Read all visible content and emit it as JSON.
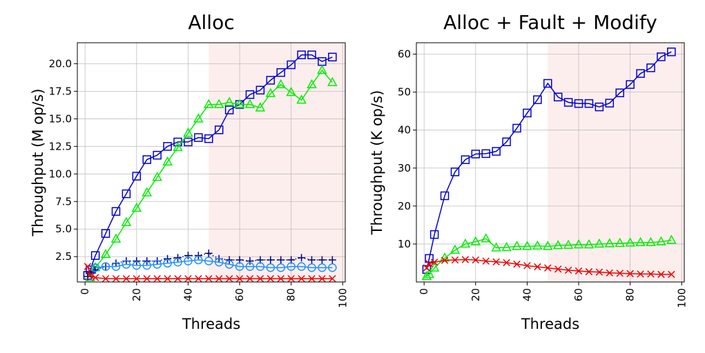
{
  "chart_data": [
    {
      "type": "line",
      "title": "Alloc",
      "xlabel": "Threads",
      "ylabel": "Throughput (M op/s)",
      "xlim": [
        -3,
        101
      ],
      "ylim": [
        0.2,
        21.9
      ],
      "xticks": [
        0,
        20,
        40,
        60,
        80,
        100
      ],
      "yticks": [
        2.5,
        5.0,
        7.5,
        10.0,
        12.5,
        15.0,
        17.5,
        20.0
      ],
      "ytick_labels": [
        "2.5",
        "5.0",
        "7.5",
        "10.0",
        "12.5",
        "15.0",
        "17.5",
        "20.0"
      ],
      "grid": true,
      "shaded_region": {
        "x0": 48,
        "x1": 101,
        "color": "#fdeeee"
      },
      "series": [
        {
          "color": "#0000cc",
          "marker": "square",
          "linestyle": "solid",
          "x": [
            1,
            2,
            4,
            8,
            12,
            16,
            20,
            24,
            28,
            32,
            36,
            40,
            44,
            48,
            52,
            56,
            60,
            64,
            68,
            72,
            76,
            80,
            84,
            88,
            92,
            96
          ],
          "y": [
            0.8,
            1.3,
            2.6,
            4.6,
            6.6,
            8.2,
            9.8,
            11.3,
            11.7,
            12.5,
            12.9,
            12.9,
            13.3,
            13.2,
            14.0,
            15.8,
            16.3,
            17.2,
            17.6,
            18.5,
            19.2,
            19.9,
            20.8,
            20.8,
            20.2,
            20.6
          ]
        },
        {
          "color": "#00ee00",
          "marker": "triangle",
          "linestyle": "solid",
          "x": [
            2,
            4,
            8,
            12,
            16,
            20,
            24,
            28,
            32,
            36,
            40,
            44,
            48,
            52,
            56,
            60,
            64,
            68,
            72,
            76,
            80,
            84,
            88,
            92,
            96
          ],
          "y": [
            0.6,
            1.5,
            2.7,
            4.1,
            5.6,
            6.9,
            8.3,
            9.7,
            11.1,
            12.4,
            13.7,
            15.0,
            16.3,
            16.3,
            16.5,
            16.3,
            16.3,
            16.0,
            17.3,
            18.1,
            17.4,
            16.7,
            18.1,
            19.4,
            18.3
          ]
        },
        {
          "color": "#000080",
          "marker": "plus",
          "linestyle": "dotted",
          "x": [
            1,
            2,
            4,
            8,
            12,
            16,
            20,
            24,
            28,
            32,
            36,
            40,
            44,
            48,
            52,
            56,
            60,
            64,
            68,
            72,
            76,
            80,
            84,
            88,
            92,
            96
          ],
          "y": [
            0.7,
            1.1,
            1.3,
            1.6,
            1.9,
            2.1,
            2.1,
            2.1,
            2.1,
            2.3,
            2.4,
            2.6,
            2.6,
            2.8,
            2.3,
            2.2,
            2.2,
            2.1,
            2.2,
            2.2,
            2.2,
            2.2,
            2.4,
            2.2,
            2.2,
            2.2
          ]
        },
        {
          "color": "#1e90ff",
          "marker": "circle",
          "linestyle": "solid",
          "x": [
            4,
            8,
            12,
            16,
            20,
            24,
            28,
            32,
            36,
            40,
            44,
            48,
            52,
            56,
            60,
            64,
            68,
            72,
            76,
            80,
            84,
            88,
            92,
            96
          ],
          "y": [
            1.5,
            1.6,
            1.6,
            1.8,
            1.7,
            1.7,
            1.8,
            1.9,
            2.0,
            2.1,
            2.2,
            2.1,
            2.0,
            1.8,
            1.6,
            1.6,
            1.6,
            1.5,
            1.5,
            1.6,
            1.6,
            1.5,
            1.5,
            1.5
          ]
        },
        {
          "color": "#ee0000",
          "marker": "x",
          "linestyle": "solid",
          "x": [
            1,
            2,
            4,
            8,
            12,
            16,
            20,
            24,
            28,
            32,
            36,
            40,
            44,
            48,
            52,
            56,
            60,
            64,
            68,
            72,
            76,
            80,
            84,
            88,
            92,
            96
          ],
          "y": [
            1.6,
            0.8,
            0.6,
            0.5,
            0.5,
            0.5,
            0.5,
            0.5,
            0.5,
            0.5,
            0.5,
            0.5,
            0.5,
            0.5,
            0.5,
            0.5,
            0.5,
            0.5,
            0.5,
            0.5,
            0.5,
            0.5,
            0.5,
            0.5,
            0.5,
            0.5
          ]
        }
      ]
    },
    {
      "type": "line",
      "title": "Alloc + Fault + Modify",
      "xlabel": "Threads",
      "ylabel": "Throughput (K op/s)",
      "xlim": [
        -3,
        101
      ],
      "ylim": [
        0,
        63
      ],
      "xticks": [
        0,
        20,
        40,
        60,
        80,
        100
      ],
      "yticks": [
        10,
        20,
        30,
        40,
        50,
        60
      ],
      "ytick_labels": [
        "10",
        "20",
        "30",
        "40",
        "50",
        "60"
      ],
      "grid": true,
      "shaded_region": {
        "x0": 48,
        "x1": 101,
        "color": "#fdeeee"
      },
      "series": [
        {
          "color": "#0000cc",
          "marker": "square",
          "linestyle": "solid",
          "x": [
            1,
            2,
            4,
            8,
            12,
            16,
            20,
            24,
            28,
            32,
            36,
            40,
            44,
            48,
            52,
            56,
            60,
            64,
            68,
            72,
            76,
            80,
            84,
            88,
            92,
            96
          ],
          "y": [
            3.3,
            6.2,
            12.5,
            22.7,
            29.0,
            32.2,
            33.7,
            33.8,
            34.4,
            36.9,
            40.5,
            44.5,
            48.0,
            52.3,
            48.7,
            47.3,
            47.0,
            47.0,
            46.1,
            47.1,
            49.8,
            52.0,
            54.9,
            56.4,
            59.3,
            60.6
          ]
        },
        {
          "color": "#00ee00",
          "marker": "triangle",
          "linestyle": "solid",
          "x": [
            1,
            2,
            4,
            8,
            12,
            16,
            20,
            24,
            28,
            32,
            36,
            40,
            44,
            48,
            52,
            56,
            60,
            64,
            68,
            72,
            76,
            80,
            84,
            88,
            92,
            96
          ],
          "y": [
            1.5,
            2.0,
            3.7,
            6.3,
            8.4,
            10.0,
            10.6,
            11.4,
            9.0,
            9.1,
            9.4,
            9.4,
            9.5,
            9.4,
            9.6,
            9.7,
            9.8,
            9.8,
            10.0,
            10.1,
            10.2,
            10.3,
            10.4,
            10.4,
            10.6,
            11.0
          ]
        },
        {
          "color": "#ee0000",
          "marker": "x",
          "linestyle": "solid",
          "x": [
            1,
            2,
            4,
            8,
            12,
            16,
            20,
            24,
            28,
            32,
            36,
            40,
            44,
            48,
            52,
            56,
            60,
            64,
            68,
            72,
            76,
            80,
            84,
            88,
            92,
            96
          ],
          "y": [
            3.7,
            4.8,
            5.2,
            5.7,
            5.8,
            5.9,
            5.8,
            5.5,
            5.3,
            5.1,
            4.7,
            4.3,
            4.0,
            3.7,
            3.4,
            3.1,
            2.9,
            2.7,
            2.6,
            2.4,
            2.3,
            2.2,
            2.1,
            2.1,
            2.0,
            2.0
          ]
        }
      ]
    }
  ]
}
